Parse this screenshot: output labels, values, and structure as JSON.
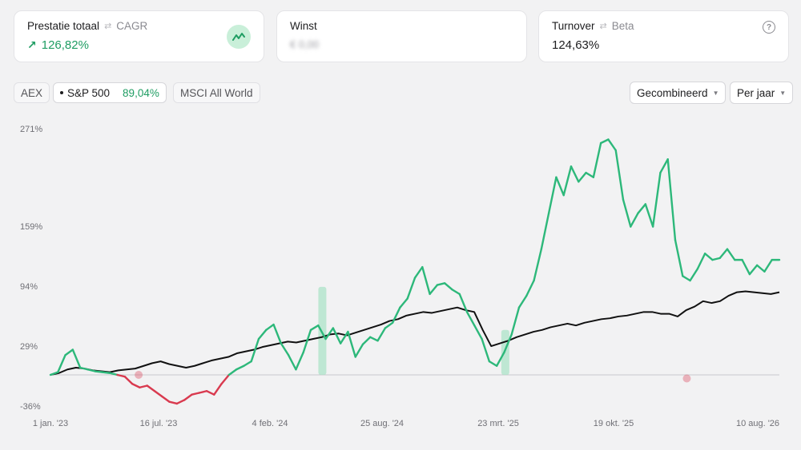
{
  "cards": {
    "performance": {
      "title": "Prestatie totaal",
      "alt": "CAGR",
      "value": "126,82%"
    },
    "profit": {
      "title": "Winst",
      "value": "€ 0,00"
    },
    "turnover": {
      "title": "Turnover",
      "alt": "Beta",
      "value": "124,63%",
      "help": "?"
    }
  },
  "benchmarks": [
    {
      "label": "AEX"
    },
    {
      "label": "S&P 500",
      "value": "89,04%",
      "active": true
    },
    {
      "label": "MSCI All World"
    }
  ],
  "controls": {
    "mode": "Gecombineerd",
    "period": "Per jaar"
  },
  "colors": {
    "positive": "#2db87a",
    "negative": "#d93a4f",
    "benchmark": "#111111",
    "highlight": "#a8e3c4"
  },
  "icons": {
    "swap": "swap-icon",
    "trend": "trend-icon",
    "arrow": "arrow-up-right-icon",
    "help": "help-icon",
    "caret": "caret-down-icon"
  },
  "chart_data": {
    "type": "line",
    "y_ticks": [
      "271%",
      "159%",
      "94%",
      "29%",
      "-36%"
    ],
    "y_tick_values": [
      271,
      159,
      94,
      29,
      -36
    ],
    "x_ticks": [
      "1 jan. '23",
      "16 jul. '23",
      "4 feb. '24",
      "25 aug. '24",
      "23 mrt. '25",
      "19 okt. '25",
      "10 aug. '26"
    ],
    "ylim": [
      -36,
      271
    ],
    "x_range": [
      "1 jan. '23",
      "10 aug. '26"
    ],
    "series": [
      {
        "values": [
          0,
          3,
          22,
          28,
          8,
          6,
          4,
          3,
          2,
          0,
          -2,
          -10,
          -14,
          -12,
          -18,
          -24,
          -30,
          -32,
          -28,
          -22,
          -20,
          -18,
          -22,
          -10,
          0,
          6,
          10,
          15,
          40,
          50,
          56,
          35,
          22,
          6,
          25,
          50,
          55,
          40,
          52,
          35,
          48,
          20,
          34,
          42,
          38,
          52,
          58,
          75,
          85,
          108,
          120,
          90,
          100,
          102,
          95,
          90,
          70,
          55,
          40,
          15,
          10,
          25,
          45,
          75,
          88,
          105,
          140,
          180,
          220,
          200,
          232,
          215,
          225,
          220,
          258,
          262,
          250,
          195,
          165,
          180,
          190,
          165,
          225,
          240,
          150,
          110,
          105,
          118,
          135,
          128,
          130,
          140,
          128,
          128,
          112,
          122,
          115,
          128,
          128
        ]
      },
      {
        "values": [
          0,
          2,
          6,
          8,
          7,
          5,
          4,
          3,
          5,
          6,
          7,
          10,
          13,
          15,
          12,
          10,
          8,
          10,
          13,
          16,
          18,
          20,
          24,
          26,
          28,
          31,
          33,
          35,
          37,
          36,
          38,
          40,
          42,
          45,
          46,
          44,
          47,
          50,
          53,
          56,
          60,
          62,
          66,
          68,
          70,
          69,
          71,
          73,
          75,
          72,
          70,
          50,
          32,
          35,
          38,
          42,
          45,
          48,
          50,
          53,
          55,
          57,
          55,
          58,
          60,
          62,
          63,
          65,
          66,
          68,
          70,
          70,
          68,
          68,
          65,
          72,
          76,
          82,
          80,
          82,
          88,
          92,
          93,
          92,
          91,
          90,
          92
        ]
      }
    ]
  }
}
